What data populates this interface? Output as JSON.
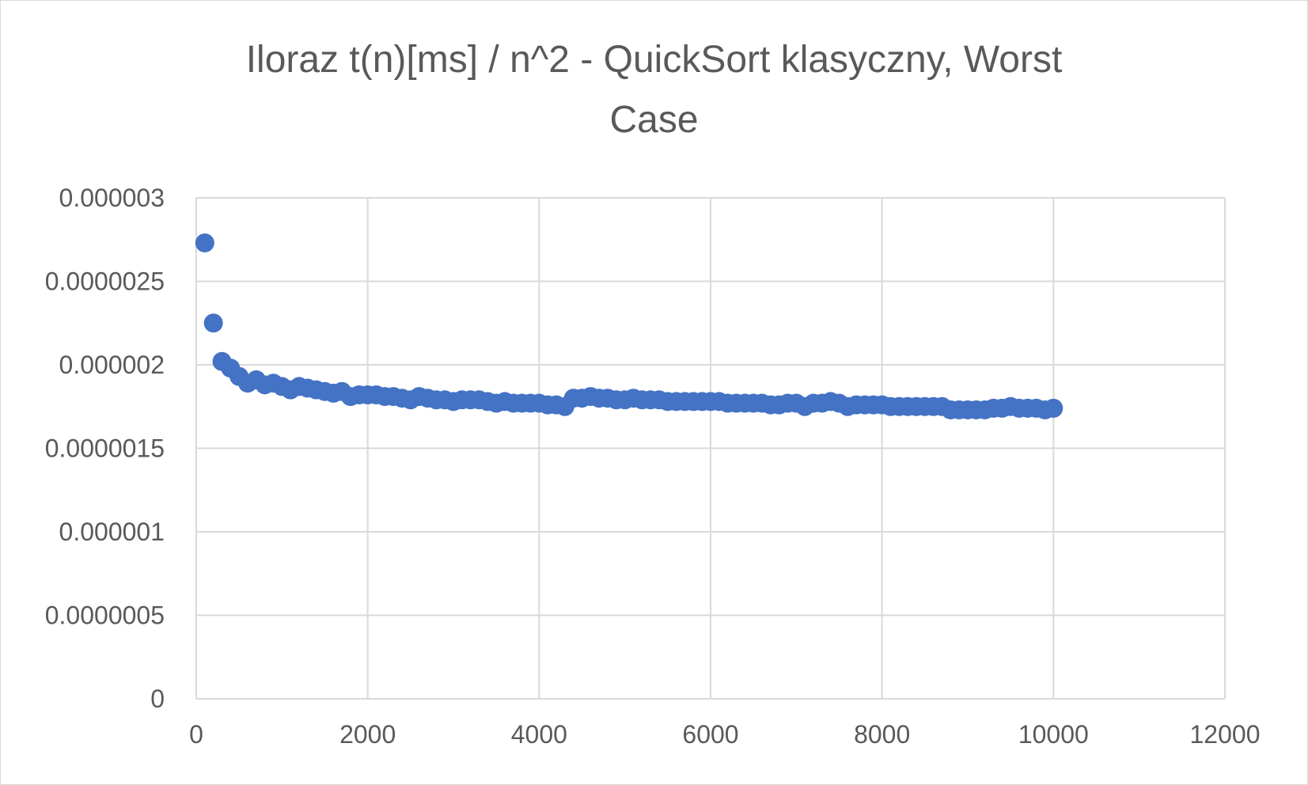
{
  "chart_data": {
    "type": "scatter",
    "title_lines": [
      "Iloraz t(n)[ms] / n^2 - QuickSort klasyczny, Worst",
      "Case"
    ],
    "xlabel": "",
    "ylabel": "",
    "xlim": [
      0,
      12000
    ],
    "ylim": [
      0,
      3e-06
    ],
    "x_ticks": [
      0,
      2000,
      4000,
      6000,
      8000,
      10000,
      12000
    ],
    "x_tick_labels": [
      "0",
      "2000",
      "4000",
      "6000",
      "8000",
      "10000",
      "12000"
    ],
    "y_ticks": [
      0,
      5e-07,
      1e-06,
      1.5e-06,
      2e-06,
      2.5e-06,
      3e-06
    ],
    "y_tick_labels": [
      "0",
      "0.0000005",
      "0.000001",
      "0.0000015",
      "0.000002",
      "0.0000025",
      "0.000003"
    ],
    "grid": true,
    "legend": "none",
    "marker_color": "#4472C4",
    "gridline_color": "#d9d9d9",
    "series": [
      {
        "x": [
          100,
          200,
          300,
          400,
          500,
          600,
          700,
          800,
          900,
          1000,
          1100,
          1200,
          1300,
          1400,
          1500,
          1600,
          1700,
          1800,
          1900,
          2000,
          2100,
          2200,
          2300,
          2400,
          2500,
          2600,
          2700,
          2800,
          2900,
          3000,
          3100,
          3200,
          3300,
          3400,
          3500,
          3600,
          3700,
          3800,
          3900,
          4000,
          4100,
          4200,
          4300,
          4400,
          4500,
          4600,
          4700,
          4800,
          4900,
          5000,
          5100,
          5200,
          5300,
          5400,
          5500,
          5600,
          5700,
          5800,
          5900,
          6000,
          6100,
          6200,
          6300,
          6400,
          6500,
          6600,
          6700,
          6800,
          6900,
          7000,
          7100,
          7200,
          7300,
          7400,
          7500,
          7600,
          7700,
          7800,
          7900,
          8000,
          8100,
          8200,
          8300,
          8400,
          8500,
          8600,
          8700,
          8800,
          8900,
          9000,
          9100,
          9200,
          9300,
          9400,
          9500,
          9600,
          9700,
          9800,
          9900,
          10000
        ],
        "y": [
          2.73e-06,
          2.25e-06,
          2.02e-06,
          1.98e-06,
          1.93e-06,
          1.89e-06,
          1.91e-06,
          1.88e-06,
          1.89e-06,
          1.87e-06,
          1.85e-06,
          1.87e-06,
          1.86e-06,
          1.85e-06,
          1.84e-06,
          1.83e-06,
          1.84e-06,
          1.81e-06,
          1.82e-06,
          1.82e-06,
          1.82e-06,
          1.81e-06,
          1.81e-06,
          1.8e-06,
          1.79e-06,
          1.81e-06,
          1.8e-06,
          1.79e-06,
          1.79e-06,
          1.78e-06,
          1.79e-06,
          1.79e-06,
          1.79e-06,
          1.78e-06,
          1.77e-06,
          1.78e-06,
          1.77e-06,
          1.77e-06,
          1.77e-06,
          1.77e-06,
          1.76e-06,
          1.76e-06,
          1.75e-06,
          1.8e-06,
          1.8e-06,
          1.81e-06,
          1.8e-06,
          1.8e-06,
          1.79e-06,
          1.79e-06,
          1.8e-06,
          1.79e-06,
          1.79e-06,
          1.79e-06,
          1.78e-06,
          1.78e-06,
          1.78e-06,
          1.78e-06,
          1.78e-06,
          1.78e-06,
          1.78e-06,
          1.77e-06,
          1.77e-06,
          1.77e-06,
          1.77e-06,
          1.77e-06,
          1.76e-06,
          1.76e-06,
          1.77e-06,
          1.77e-06,
          1.75e-06,
          1.77e-06,
          1.77e-06,
          1.78e-06,
          1.77e-06,
          1.75e-06,
          1.76e-06,
          1.76e-06,
          1.76e-06,
          1.76e-06,
          1.75e-06,
          1.75e-06,
          1.75e-06,
          1.75e-06,
          1.75e-06,
          1.75e-06,
          1.75e-06,
          1.73e-06,
          1.73e-06,
          1.73e-06,
          1.73e-06,
          1.73e-06,
          1.74e-06,
          1.74e-06,
          1.75e-06,
          1.74e-06,
          1.74e-06,
          1.74e-06,
          1.73e-06,
          1.74e-06
        ]
      }
    ]
  }
}
